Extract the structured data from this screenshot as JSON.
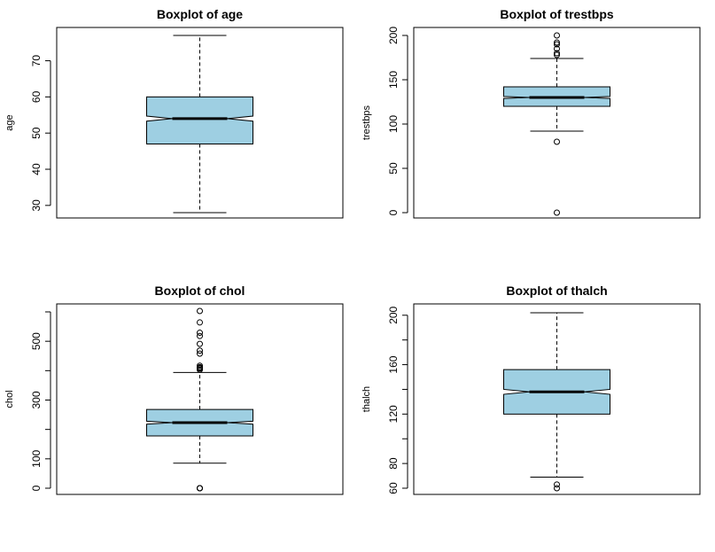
{
  "chart_data": [
    {
      "type": "boxplot",
      "title": "Boxplot of age",
      "ylabel": "age",
      "ylim": [
        28,
        77
      ],
      "yticks": [
        30,
        40,
        50,
        60,
        70
      ],
      "box": {
        "whisker_low": 28,
        "q1": 47,
        "median": 54,
        "q3": 60,
        "whisker_high": 77,
        "notch_low": 53.3,
        "notch_high": 54.7
      },
      "outliers": [],
      "colors": {
        "box_fill": "#9ecfe2"
      }
    },
    {
      "type": "boxplot",
      "title": "Boxplot of trestbps",
      "ylabel": "trestbps",
      "ylim": [
        0,
        200
      ],
      "yticks": [
        0,
        50,
        100,
        150,
        200
      ],
      "box": {
        "whisker_low": 92,
        "q1": 120,
        "median": 130,
        "q3": 142,
        "whisker_high": 174,
        "notch_low": 128.9,
        "notch_high": 131.1
      },
      "outliers": [
        0,
        80,
        178,
        180,
        185,
        190,
        192,
        200
      ],
      "colors": {
        "box_fill": "#9ecfe2"
      }
    },
    {
      "type": "boxplot",
      "title": "Boxplot of chol",
      "ylabel": "chol",
      "ylim": [
        0,
        603
      ],
      "yticks": [
        0,
        100,
        300,
        500
      ],
      "ytick_marks": [
        0,
        100,
        200,
        300,
        400,
        500,
        600
      ],
      "box": {
        "whisker_low": 85,
        "q1": 178,
        "median": 223,
        "q3": 268,
        "whisker_high": 394,
        "notch_low": 218,
        "notch_high": 228
      },
      "outliers": [
        0,
        0,
        0,
        403,
        407,
        409,
        412,
        417,
        458,
        468,
        491,
        518,
        529,
        564,
        603
      ],
      "colors": {
        "box_fill": "#9ecfe2"
      }
    },
    {
      "type": "boxplot",
      "title": "Boxplot of thalch",
      "ylabel": "thalch",
      "ylim": [
        60,
        202
      ],
      "yticks": [
        60,
        80,
        120,
        160,
        200
      ],
      "ytick_marks": [
        60,
        80,
        100,
        120,
        140,
        160,
        180,
        200
      ],
      "box": {
        "whisker_low": 69,
        "q1": 120,
        "median": 138,
        "q3": 156,
        "whisker_high": 202,
        "notch_low": 136,
        "notch_high": 140
      },
      "outliers": [
        60,
        63
      ],
      "colors": {
        "box_fill": "#9ecfe2"
      }
    }
  ]
}
